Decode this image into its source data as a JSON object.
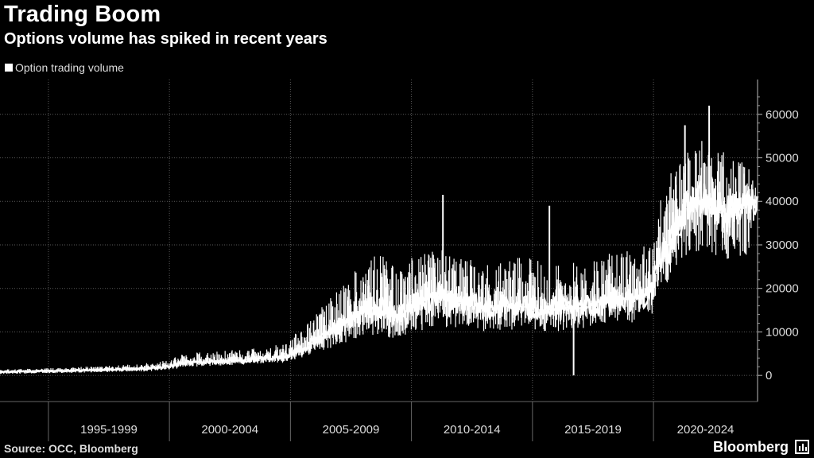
{
  "header": {
    "title": "Trading Boom",
    "subtitle": "Options volume has spiked in recent years"
  },
  "footer": {
    "source": "Source: OCC, Bloomberg",
    "brand": "Bloomberg"
  },
  "colors": {
    "background": "#000000",
    "series": "#ffffff",
    "grid": "#5a5a5a",
    "axis_text": "#dddddd"
  },
  "chart_data": {
    "type": "line",
    "legend": [
      "Option trading volume"
    ],
    "legend_placement": "top-left",
    "x_categories": [
      "1995-1999",
      "2000-2004",
      "2005-2009",
      "2010-2014",
      "2015-2019",
      "2020-2024"
    ],
    "x_range_years": [
      1993,
      2024.3
    ],
    "y_ticks": [
      0,
      10000,
      20000,
      30000,
      40000,
      50000,
      60000
    ],
    "y_tick_labels": [
      "0",
      "10000",
      "20000",
      "30000",
      "40000",
      "50000",
      "60000"
    ],
    "ylim": [
      -6000,
      68000
    ],
    "y_axis_position": "right",
    "grid": true,
    "series": [
      {
        "name": "Option trading volume",
        "x": [
          1993.0,
          1994.0,
          1995.0,
          1996.0,
          1997.0,
          1998.0,
          1999.0,
          2000.0,
          2000.5,
          2001.0,
          2002.0,
          2003.0,
          2004.0,
          2004.7,
          2005.0,
          2005.5,
          2006.0,
          2006.5,
          2007.0,
          2007.5,
          2008.0,
          2008.5,
          2009.0,
          2009.5,
          2010.0,
          2010.5,
          2011.0,
          2011.5,
          2012.0,
          2013.0,
          2014.0,
          2015.0,
          2015.5,
          2016.0,
          2017.0,
          2017.5,
          2018.0,
          2019.0,
          2019.5,
          2020.0,
          2020.2,
          2020.5,
          2021.0,
          2021.5,
          2022.0,
          2022.5,
          2023.0,
          2023.5,
          2024.0,
          2024.3
        ],
        "values": [
          800,
          900,
          1000,
          1100,
          1200,
          1400,
          1600,
          2000,
          2800,
          3000,
          3200,
          3500,
          3800,
          4200,
          5000,
          6000,
          7500,
          9000,
          11000,
          12500,
          14500,
          15500,
          14500,
          13500,
          15500,
          17000,
          18500,
          17500,
          16500,
          15500,
          16000,
          15500,
          15000,
          15000,
          15500,
          16000,
          17500,
          17500,
          18000,
          20000,
          26000,
          28000,
          35000,
          40000,
          40000,
          39000,
          37000,
          38000,
          40000,
          40000
        ],
        "lower_envelope": [
          300,
          400,
          500,
          600,
          700,
          800,
          900,
          1200,
          2000,
          2000,
          2200,
          2500,
          2800,
          3000,
          3500,
          4000,
          5000,
          6000,
          7000,
          8000,
          8500,
          9000,
          8500,
          8500,
          9500,
          10500,
          11500,
          11000,
          10500,
          10000,
          10500,
          10500,
          10000,
          10000,
          10500,
          11000,
          12000,
          12000,
          12500,
          14000,
          18000,
          20000,
          25000,
          28000,
          28000,
          27000,
          26000,
          27000,
          28000,
          30000
        ],
        "upper_envelope": [
          1400,
          1500,
          1700,
          1900,
          2100,
          2400,
          2800,
          3500,
          5000,
          5200,
          5500,
          6000,
          6500,
          7500,
          9000,
          11000,
          14000,
          17000,
          20000,
          23000,
          26000,
          28000,
          27000,
          25000,
          27000,
          28000,
          30000,
          28000,
          27000,
          26000,
          27000,
          27000,
          26000,
          26000,
          26500,
          27000,
          28000,
          29000,
          29500,
          31000,
          40000,
          44000,
          50000,
          54000,
          55000,
          53000,
          51000,
          50000,
          48000,
          46000
        ],
        "spikes": [
          {
            "x": 2011.3,
            "value": 41500
          },
          {
            "x": 2015.7,
            "value": 39000
          },
          {
            "x": 2021.3,
            "value": 57500
          },
          {
            "x": 2022.3,
            "value": 62000
          },
          {
            "x": 2016.7,
            "value": 0
          }
        ]
      }
    ]
  }
}
